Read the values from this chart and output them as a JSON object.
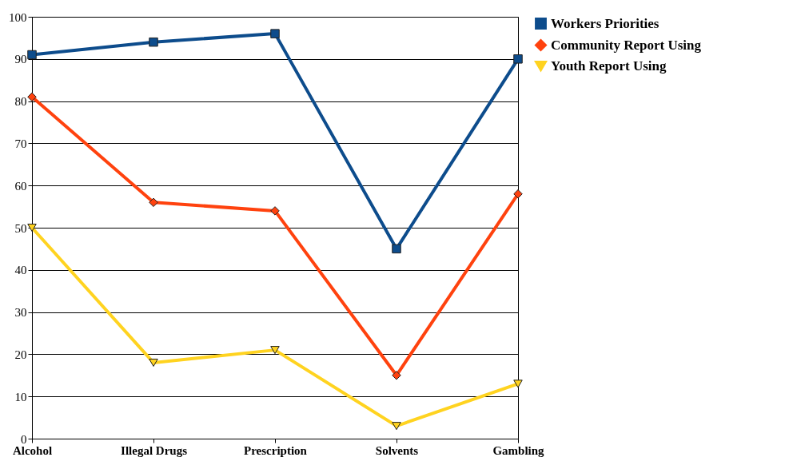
{
  "chart_data": {
    "type": "line",
    "categories": [
      "Alcohol",
      "Illegal Drugs",
      "Prescription",
      "Solvents",
      "Gambling"
    ],
    "series": [
      {
        "name": "Workers Priorities",
        "color": "#0d4c8c",
        "marker": "square",
        "values": [
          91,
          94,
          96,
          45,
          90
        ]
      },
      {
        "name": "Community Report Using",
        "color": "#ff420e",
        "marker": "diamond",
        "values": [
          81,
          56,
          54,
          15,
          58
        ]
      },
      {
        "name": "Youth Report Using",
        "color": "#ffd320",
        "marker": "triangle",
        "values": [
          50,
          18,
          21,
          3,
          13
        ]
      }
    ],
    "ylim": [
      0,
      100
    ],
    "yticks": [
      0,
      10,
      20,
      30,
      40,
      50,
      60,
      70,
      80,
      90,
      100
    ],
    "grid": "y",
    "legend": "right"
  }
}
